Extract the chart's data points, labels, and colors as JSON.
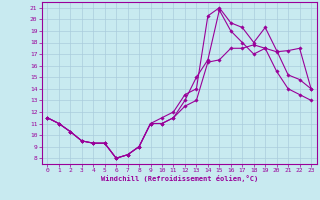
{
  "title": "",
  "xlabel": "Windchill (Refroidissement éolien,°C)",
  "background_color": "#c8eaf0",
  "line_color": "#990099",
  "grid_color": "#aaccdd",
  "xlim": [
    -0.5,
    23.5
  ],
  "ylim": [
    7.5,
    21.5
  ],
  "xticks": [
    0,
    1,
    2,
    3,
    4,
    5,
    6,
    7,
    8,
    9,
    10,
    11,
    12,
    13,
    14,
    15,
    16,
    17,
    18,
    19,
    20,
    21,
    22,
    23
  ],
  "yticks": [
    8,
    9,
    10,
    11,
    12,
    13,
    14,
    15,
    16,
    17,
    18,
    19,
    20,
    21
  ],
  "curve1_x": [
    0,
    1,
    2,
    3,
    4,
    5,
    6,
    7,
    8,
    9,
    10,
    11,
    12,
    13,
    14,
    15,
    16,
    17,
    18,
    19,
    20,
    21,
    22,
    23
  ],
  "curve1_y": [
    11.5,
    11.0,
    10.3,
    9.5,
    9.3,
    9.3,
    8.0,
    8.3,
    9.0,
    11.0,
    11.0,
    11.5,
    12.5,
    13.0,
    16.3,
    16.5,
    17.5,
    17.5,
    17.8,
    17.5,
    17.2,
    17.3,
    17.5,
    14.0
  ],
  "curve2_x": [
    0,
    1,
    2,
    3,
    4,
    5,
    6,
    7,
    8,
    9,
    10,
    11,
    12,
    13,
    14,
    15,
    16,
    17,
    18,
    19,
    20,
    21,
    22,
    23
  ],
  "curve2_y": [
    11.5,
    11.0,
    10.3,
    9.5,
    9.3,
    9.3,
    8.0,
    8.3,
    9.0,
    11.0,
    11.5,
    12.0,
    13.5,
    14.0,
    20.3,
    21.0,
    19.7,
    19.3,
    18.0,
    19.3,
    17.3,
    15.2,
    14.8,
    14.0
  ],
  "curve3_x": [
    0,
    1,
    2,
    3,
    4,
    5,
    6,
    7,
    8,
    9,
    10,
    11,
    12,
    13,
    14,
    15,
    16,
    17,
    18,
    19,
    20,
    21,
    22,
    23
  ],
  "curve3_y": [
    11.5,
    11.0,
    10.3,
    9.5,
    9.3,
    9.3,
    8.0,
    8.3,
    9.0,
    11.0,
    11.0,
    11.5,
    13.0,
    15.0,
    16.5,
    20.8,
    19.0,
    18.0,
    17.0,
    17.5,
    15.5,
    14.0,
    13.5,
    13.0
  ]
}
